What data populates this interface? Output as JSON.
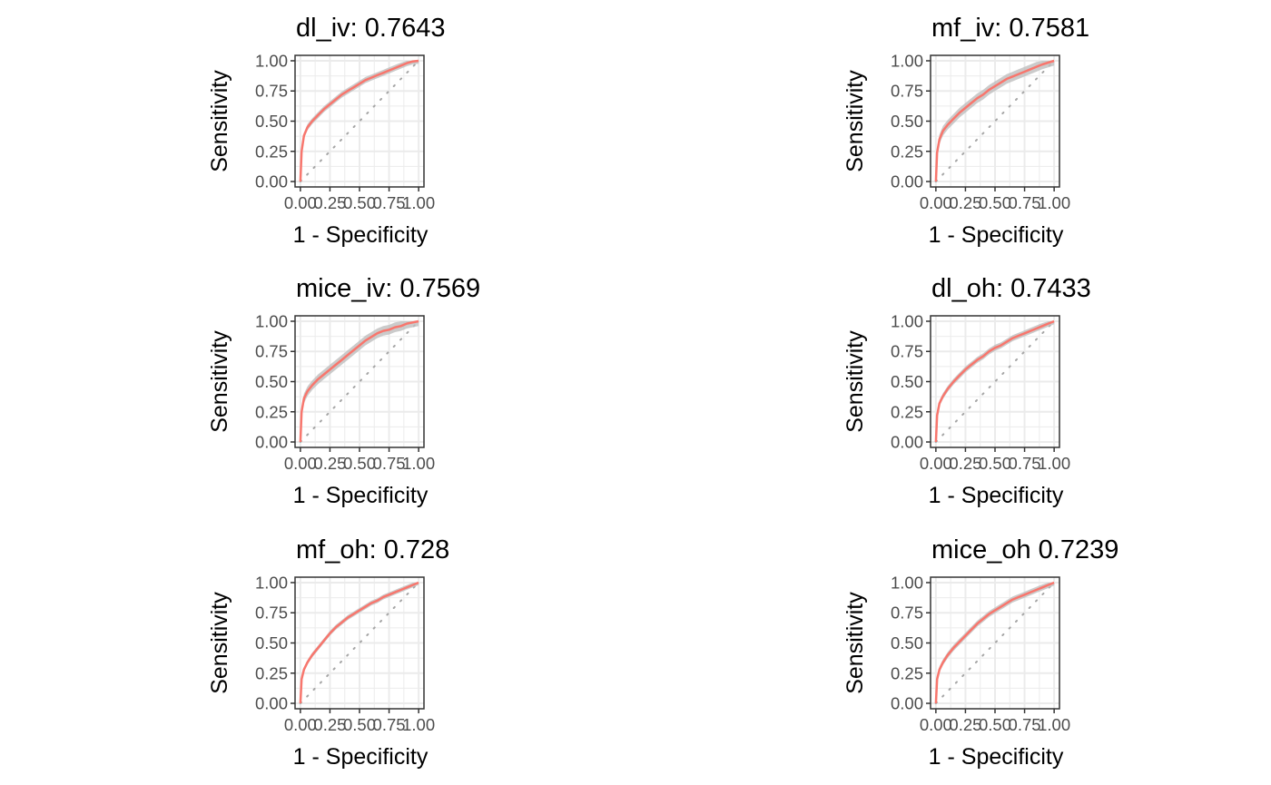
{
  "chart_data": [
    {
      "type": "line",
      "title": "dl_iv: 0.7643",
      "xlabel": "1 - Specificity",
      "ylabel": "Sensitivity",
      "xlim": [
        0,
        1
      ],
      "ylim": [
        0,
        1
      ],
      "x_ticks": [
        "0.00",
        "0.25",
        "0.50",
        "0.75",
        "1.00"
      ],
      "y_ticks": [
        "0.00",
        "0.25",
        "0.50",
        "0.75",
        "1.00"
      ],
      "grid": true,
      "reference_line": {
        "x": [
          0,
          1
        ],
        "y": [
          0,
          1
        ],
        "style": "dotted"
      },
      "series": [
        {
          "color": "#F8766D",
          "band_color": "#BEBEBE",
          "x": [
            0,
            0.01,
            0.03,
            0.06,
            0.1,
            0.15,
            0.2,
            0.25,
            0.3,
            0.35,
            0.4,
            0.45,
            0.5,
            0.55,
            0.6,
            0.65,
            0.7,
            0.75,
            0.8,
            0.85,
            0.9,
            0.95,
            1
          ],
          "y": [
            0,
            0.25,
            0.38,
            0.45,
            0.5,
            0.55,
            0.6,
            0.64,
            0.68,
            0.72,
            0.75,
            0.78,
            0.81,
            0.84,
            0.86,
            0.88,
            0.9,
            0.92,
            0.94,
            0.96,
            0.98,
            0.995,
            1
          ],
          "band": 0.025
        }
      ]
    },
    {
      "type": "line",
      "title": "mf_iv: 0.7581",
      "xlabel": "1 - Specificity",
      "ylabel": "Sensitivity",
      "xlim": [
        0,
        1
      ],
      "ylim": [
        0,
        1
      ],
      "x_ticks": [
        "0.00",
        "0.25",
        "0.50",
        "0.75",
        "1.00"
      ],
      "y_ticks": [
        "0.00",
        "0.25",
        "0.50",
        "0.75",
        "1.00"
      ],
      "grid": true,
      "reference_line": {
        "x": [
          0,
          1
        ],
        "y": [
          0,
          1
        ],
        "style": "dotted"
      },
      "series": [
        {
          "color": "#F8766D",
          "band_color": "#BEBEBE",
          "x": [
            0,
            0.01,
            0.03,
            0.06,
            0.1,
            0.15,
            0.2,
            0.25,
            0.3,
            0.35,
            0.4,
            0.45,
            0.5,
            0.55,
            0.6,
            0.65,
            0.7,
            0.75,
            0.8,
            0.85,
            0.9,
            0.95,
            1
          ],
          "y": [
            0,
            0.24,
            0.35,
            0.42,
            0.47,
            0.52,
            0.57,
            0.61,
            0.65,
            0.69,
            0.72,
            0.76,
            0.79,
            0.82,
            0.85,
            0.87,
            0.89,
            0.91,
            0.93,
            0.95,
            0.97,
            0.985,
            1
          ],
          "band": 0.04
        }
      ]
    },
    {
      "type": "line",
      "title": "mice_iv: 0.7569",
      "xlabel": "1 - Specificity",
      "ylabel": "Sensitivity",
      "xlim": [
        0,
        1
      ],
      "ylim": [
        0,
        1
      ],
      "x_ticks": [
        "0.00",
        "0.25",
        "0.50",
        "0.75",
        "1.00"
      ],
      "y_ticks": [
        "0.00",
        "0.25",
        "0.50",
        "0.75",
        "1.00"
      ],
      "grid": true,
      "reference_line": {
        "x": [
          0,
          1
        ],
        "y": [
          0,
          1
        ],
        "style": "dotted"
      },
      "series": [
        {
          "color": "#F8766D",
          "band_color": "#BEBEBE",
          "x": [
            0,
            0.01,
            0.03,
            0.06,
            0.1,
            0.15,
            0.2,
            0.25,
            0.3,
            0.35,
            0.4,
            0.45,
            0.5,
            0.55,
            0.6,
            0.65,
            0.7,
            0.75,
            0.8,
            0.85,
            0.9,
            0.95,
            1
          ],
          "y": [
            0,
            0.25,
            0.36,
            0.42,
            0.47,
            0.52,
            0.56,
            0.6,
            0.64,
            0.68,
            0.72,
            0.76,
            0.8,
            0.84,
            0.87,
            0.9,
            0.92,
            0.93,
            0.95,
            0.96,
            0.98,
            0.99,
            1
          ],
          "band": 0.04
        }
      ]
    },
    {
      "type": "line",
      "title": "dl_oh: 0.7433",
      "xlabel": "1 - Specificity",
      "ylabel": "Sensitivity",
      "xlim": [
        0,
        1
      ],
      "ylim": [
        0,
        1
      ],
      "x_ticks": [
        "0.00",
        "0.25",
        "0.50",
        "0.75",
        "1.00"
      ],
      "y_ticks": [
        "0.00",
        "0.25",
        "0.50",
        "0.75",
        "1.00"
      ],
      "grid": true,
      "reference_line": {
        "x": [
          0,
          1
        ],
        "y": [
          0,
          1
        ],
        "style": "dotted"
      },
      "series": [
        {
          "color": "#F8766D",
          "band_color": "#BEBEBE",
          "x": [
            0,
            0.01,
            0.03,
            0.06,
            0.1,
            0.15,
            0.2,
            0.25,
            0.3,
            0.35,
            0.4,
            0.45,
            0.5,
            0.55,
            0.6,
            0.65,
            0.7,
            0.75,
            0.8,
            0.85,
            0.9,
            0.95,
            1
          ],
          "y": [
            0,
            0.22,
            0.32,
            0.38,
            0.44,
            0.5,
            0.55,
            0.6,
            0.64,
            0.68,
            0.71,
            0.75,
            0.78,
            0.8,
            0.83,
            0.86,
            0.88,
            0.9,
            0.92,
            0.94,
            0.96,
            0.98,
            1
          ],
          "band": 0.025
        }
      ]
    },
    {
      "type": "line",
      "title": "mf_oh: 0.728",
      "xlabel": "1 - Specificity",
      "ylabel": "Sensitivity",
      "xlim": [
        0,
        1
      ],
      "ylim": [
        0,
        1
      ],
      "x_ticks": [
        "0.00",
        "0.25",
        "0.50",
        "0.75",
        "1.00"
      ],
      "y_ticks": [
        "0.00",
        "0.25",
        "0.50",
        "0.75",
        "1.00"
      ],
      "grid": true,
      "reference_line": {
        "x": [
          0,
          1
        ],
        "y": [
          0,
          1
        ],
        "style": "dotted"
      },
      "series": [
        {
          "color": "#F8766D",
          "band_color": "#BEBEBE",
          "x": [
            0,
            0.01,
            0.03,
            0.06,
            0.1,
            0.15,
            0.2,
            0.25,
            0.3,
            0.35,
            0.4,
            0.45,
            0.5,
            0.55,
            0.6,
            0.65,
            0.7,
            0.75,
            0.8,
            0.85,
            0.9,
            0.95,
            1
          ],
          "y": [
            0,
            0.2,
            0.28,
            0.34,
            0.4,
            0.46,
            0.52,
            0.58,
            0.63,
            0.67,
            0.71,
            0.74,
            0.77,
            0.8,
            0.83,
            0.85,
            0.88,
            0.9,
            0.92,
            0.94,
            0.96,
            0.98,
            1
          ],
          "band": 0.02
        }
      ]
    },
    {
      "type": "line",
      "title": "mice_oh 0.7239",
      "xlabel": "1 - Specificity",
      "ylabel": "Sensitivity",
      "xlim": [
        0,
        1
      ],
      "ylim": [
        0,
        1
      ],
      "x_ticks": [
        "0.00",
        "0.25",
        "0.50",
        "0.75",
        "1.00"
      ],
      "y_ticks": [
        "0.00",
        "0.25",
        "0.50",
        "0.75",
        "1.00"
      ],
      "grid": true,
      "reference_line": {
        "x": [
          0,
          1
        ],
        "y": [
          0,
          1
        ],
        "style": "dotted"
      },
      "series": [
        {
          "color": "#F8766D",
          "band_color": "#BEBEBE",
          "x": [
            0,
            0.01,
            0.03,
            0.06,
            0.1,
            0.15,
            0.2,
            0.25,
            0.3,
            0.35,
            0.4,
            0.45,
            0.5,
            0.55,
            0.6,
            0.65,
            0.7,
            0.75,
            0.8,
            0.85,
            0.9,
            0.95,
            1
          ],
          "y": [
            0,
            0.2,
            0.28,
            0.34,
            0.4,
            0.46,
            0.51,
            0.56,
            0.61,
            0.66,
            0.7,
            0.74,
            0.77,
            0.8,
            0.83,
            0.86,
            0.88,
            0.9,
            0.92,
            0.94,
            0.96,
            0.98,
            1
          ],
          "band": 0.025
        }
      ]
    }
  ]
}
